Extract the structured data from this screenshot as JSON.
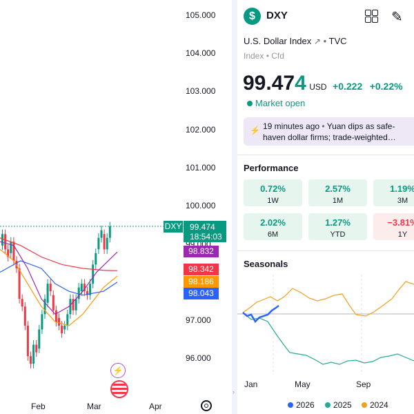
{
  "chart": {
    "price_axis": [
      "105.000",
      "104.000",
      "103.000",
      "102.000",
      "101.000",
      "100.000",
      "99.000",
      "97.000",
      "96.000"
    ],
    "time_axis": [
      "Feb",
      "Mar",
      "Apr"
    ],
    "symbol_tag": "DXY",
    "current_price": "99.474",
    "countdown": "18:54:03",
    "tags": [
      {
        "value": "98.832",
        "color": "#9c27b0"
      },
      {
        "value": "98.342",
        "color": "#f23645"
      },
      {
        "value": "98.186",
        "color": "#ff9800"
      },
      {
        "value": "98.043",
        "color": "#2962ff"
      }
    ],
    "colors": {
      "up": "#089981",
      "down": "#f23645",
      "last": "#089981"
    },
    "icons": [
      "lightning-icon",
      "us-flag-icon",
      "settings-icon"
    ]
  },
  "header": {
    "ticker": "DXY",
    "name": "U.S. Dollar Index",
    "exchange": "TVC",
    "type": "Index",
    "kind": "Cfd",
    "price_main": "99.47",
    "price_last": "4",
    "currency": "USD",
    "change": "+0.222",
    "change_pct": "+0.22%",
    "market_status": "Market open"
  },
  "news": {
    "time": "19 minutes ago",
    "line1": "Yuan dips as safe-",
    "line2": "haven dollar firms; trade-weighted…"
  },
  "performance": {
    "title": "Performance",
    "cells": [
      {
        "value": "0.72%",
        "period": "1W",
        "trend": "pos"
      },
      {
        "value": "2.57%",
        "period": "1M",
        "trend": "pos"
      },
      {
        "value": "1.19%",
        "period": "3M",
        "trend": "pos"
      },
      {
        "value": "2.02%",
        "period": "6M",
        "trend": "pos"
      },
      {
        "value": "1.27%",
        "period": "YTD",
        "trend": "pos"
      },
      {
        "value": "−3.81%",
        "period": "1Y",
        "trend": "neg"
      }
    ]
  },
  "seasonals": {
    "title": "Seasonals",
    "months": [
      "Jan",
      "May",
      "Sep"
    ],
    "legend": [
      {
        "label": "2026",
        "color": "#2962ff"
      },
      {
        "label": "2025",
        "color": "#22ab94"
      },
      {
        "label": "2024",
        "color": "#f0a020"
      }
    ]
  }
}
